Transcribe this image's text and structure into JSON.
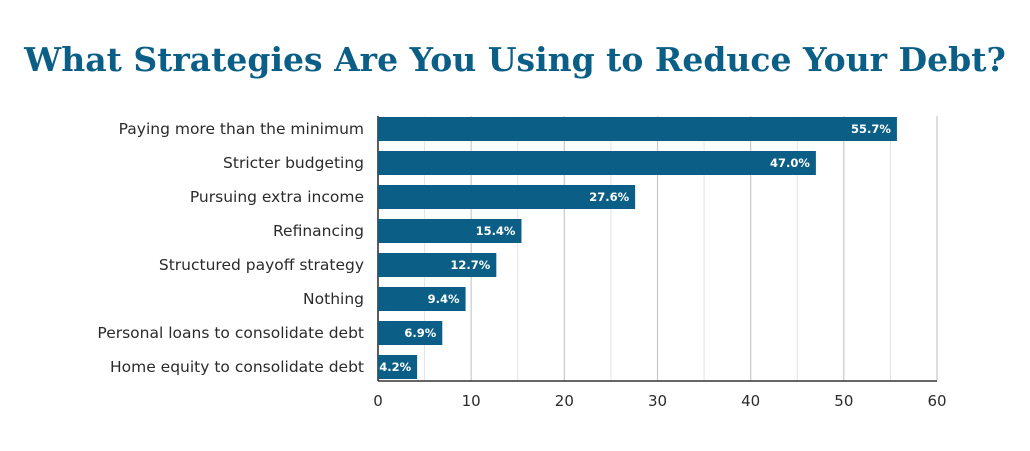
{
  "chart_data": {
    "type": "bar",
    "orientation": "horizontal",
    "title": "What Strategies Are You Using to Reduce Your Debt?",
    "categories": [
      "Paying more than the minimum",
      "Stricter budgeting",
      "Pursuing extra income",
      "Refinancing",
      "Structured payoff strategy",
      "Nothing",
      "Personal loans to consolidate debt",
      "Home equity to consolidate debt"
    ],
    "values": [
      55.7,
      47.0,
      27.6,
      15.4,
      12.7,
      9.4,
      6.9,
      4.2
    ],
    "value_labels": [
      "55.7%",
      "47.0%",
      "27.6%",
      "15.4%",
      "12.7%",
      "9.4%",
      "6.9%",
      "4.2%"
    ],
    "xlim": [
      0,
      60
    ],
    "xticks": [
      0,
      10,
      20,
      30,
      40,
      50,
      60
    ],
    "grid": true,
    "bar_color": "#0b5f87",
    "title_color": "#0b5f87"
  }
}
